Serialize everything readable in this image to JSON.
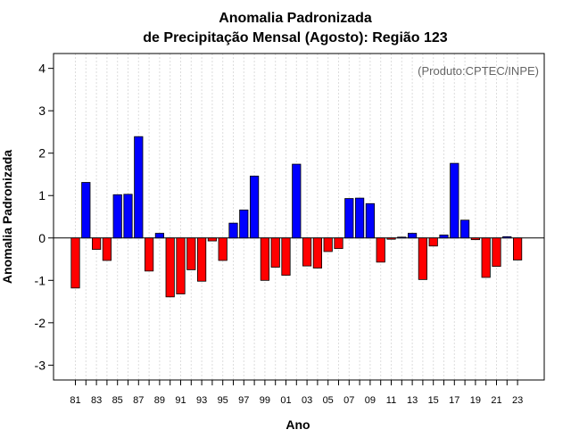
{
  "chart_data": {
    "type": "bar",
    "title_line1": "Anomalia Padronizada",
    "title_line2": "de Precipitação Mensal (Agosto): Região 123",
    "xlabel": "Ano",
    "ylabel": "Anomalia Padronizada",
    "source_note": "(Produto:CPTEC/INPE)",
    "ylim": [
      -3.35,
      4.35
    ],
    "yticks": [
      "-3",
      "-2",
      "-1",
      "0",
      "1",
      "2",
      "3",
      "4"
    ],
    "categories": [
      "81",
      "82",
      "83",
      "84",
      "85",
      "86",
      "87",
      "88",
      "89",
      "90",
      "91",
      "92",
      "93",
      "94",
      "95",
      "96",
      "97",
      "98",
      "99",
      "00",
      "01",
      "02",
      "03",
      "04",
      "05",
      "06",
      "07",
      "08",
      "09",
      "10",
      "11",
      "12",
      "13",
      "14",
      "15",
      "16",
      "17",
      "18",
      "19",
      "20",
      "21",
      "22",
      "23"
    ],
    "xtick_labels": [
      "81",
      "83",
      "85",
      "87",
      "89",
      "91",
      "93",
      "95",
      "97",
      "99",
      "01",
      "03",
      "05",
      "07",
      "09",
      "11",
      "13",
      "15",
      "17",
      "19",
      "21",
      "23"
    ],
    "values": [
      -1.18,
      1.31,
      -0.27,
      -0.53,
      1.02,
      1.03,
      2.39,
      -0.78,
      0.11,
      -1.39,
      -1.32,
      -0.75,
      -1.02,
      -0.07,
      -0.53,
      0.35,
      0.66,
      1.46,
      -1.0,
      -0.69,
      -0.88,
      1.74,
      -0.66,
      -0.71,
      -0.32,
      -0.25,
      0.93,
      0.94,
      0.81,
      -0.57,
      -0.03,
      0.02,
      0.11,
      -0.98,
      -0.19,
      0.07,
      1.76,
      0.42,
      -0.04,
      -0.93,
      -0.67,
      0.03,
      -0.52
    ],
    "grid": true,
    "colors": {
      "positive": "#0000ff",
      "negative": "#ff0000",
      "grid": "#dddddd",
      "axis": "#000000"
    }
  }
}
